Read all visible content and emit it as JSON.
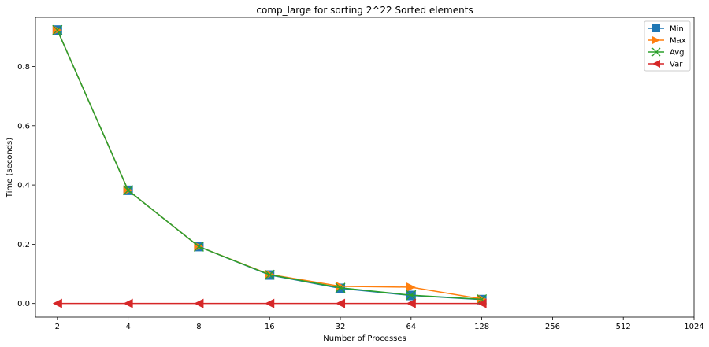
{
  "chart_data": {
    "type": "line",
    "title": "comp_large for sorting 2^22 Sorted elements",
    "xlabel": "Number of Processes",
    "ylabel": "Time (seconds)",
    "x_scale": "log2",
    "x_ticks": [
      2,
      4,
      8,
      16,
      32,
      64,
      128,
      256,
      512,
      1024
    ],
    "x_tick_labels": [
      "2",
      "4",
      "8",
      "16",
      "32",
      "64",
      "128",
      "256",
      "512",
      "1024"
    ],
    "y_ticks": [
      0.0,
      0.2,
      0.4,
      0.6,
      0.8
    ],
    "y_tick_labels": [
      "0.0",
      "0.2",
      "0.4",
      "0.6",
      "0.8"
    ],
    "ylim": [
      -0.046,
      0.966
    ],
    "grid": false,
    "legend_position": "top-right",
    "series": [
      {
        "name": "Min",
        "color": "#1f77b4",
        "marker": "square",
        "x": [
          2,
          4,
          8,
          16,
          32,
          64,
          128
        ],
        "y": [
          0.923,
          0.382,
          0.192,
          0.096,
          0.051,
          0.027,
          0.013
        ]
      },
      {
        "name": "Max",
        "color": "#ff7f0e",
        "marker": "triangle-right",
        "x": [
          2,
          4,
          8,
          16,
          32,
          64,
          128
        ],
        "y": [
          0.923,
          0.382,
          0.192,
          0.098,
          0.058,
          0.055,
          0.015
        ]
      },
      {
        "name": "Avg",
        "color": "#2ca02c",
        "marker": "x",
        "x": [
          2,
          4,
          8,
          16,
          32,
          64,
          128
        ],
        "y": [
          0.923,
          0.382,
          0.192,
          0.097,
          0.053,
          0.028,
          0.014
        ]
      },
      {
        "name": "Var",
        "color": "#d62728",
        "marker": "triangle-left",
        "x": [
          2,
          4,
          8,
          16,
          32,
          64,
          128
        ],
        "y": [
          0.0,
          0.0,
          0.0,
          0.0,
          0.0,
          0.0,
          0.0
        ]
      }
    ]
  }
}
